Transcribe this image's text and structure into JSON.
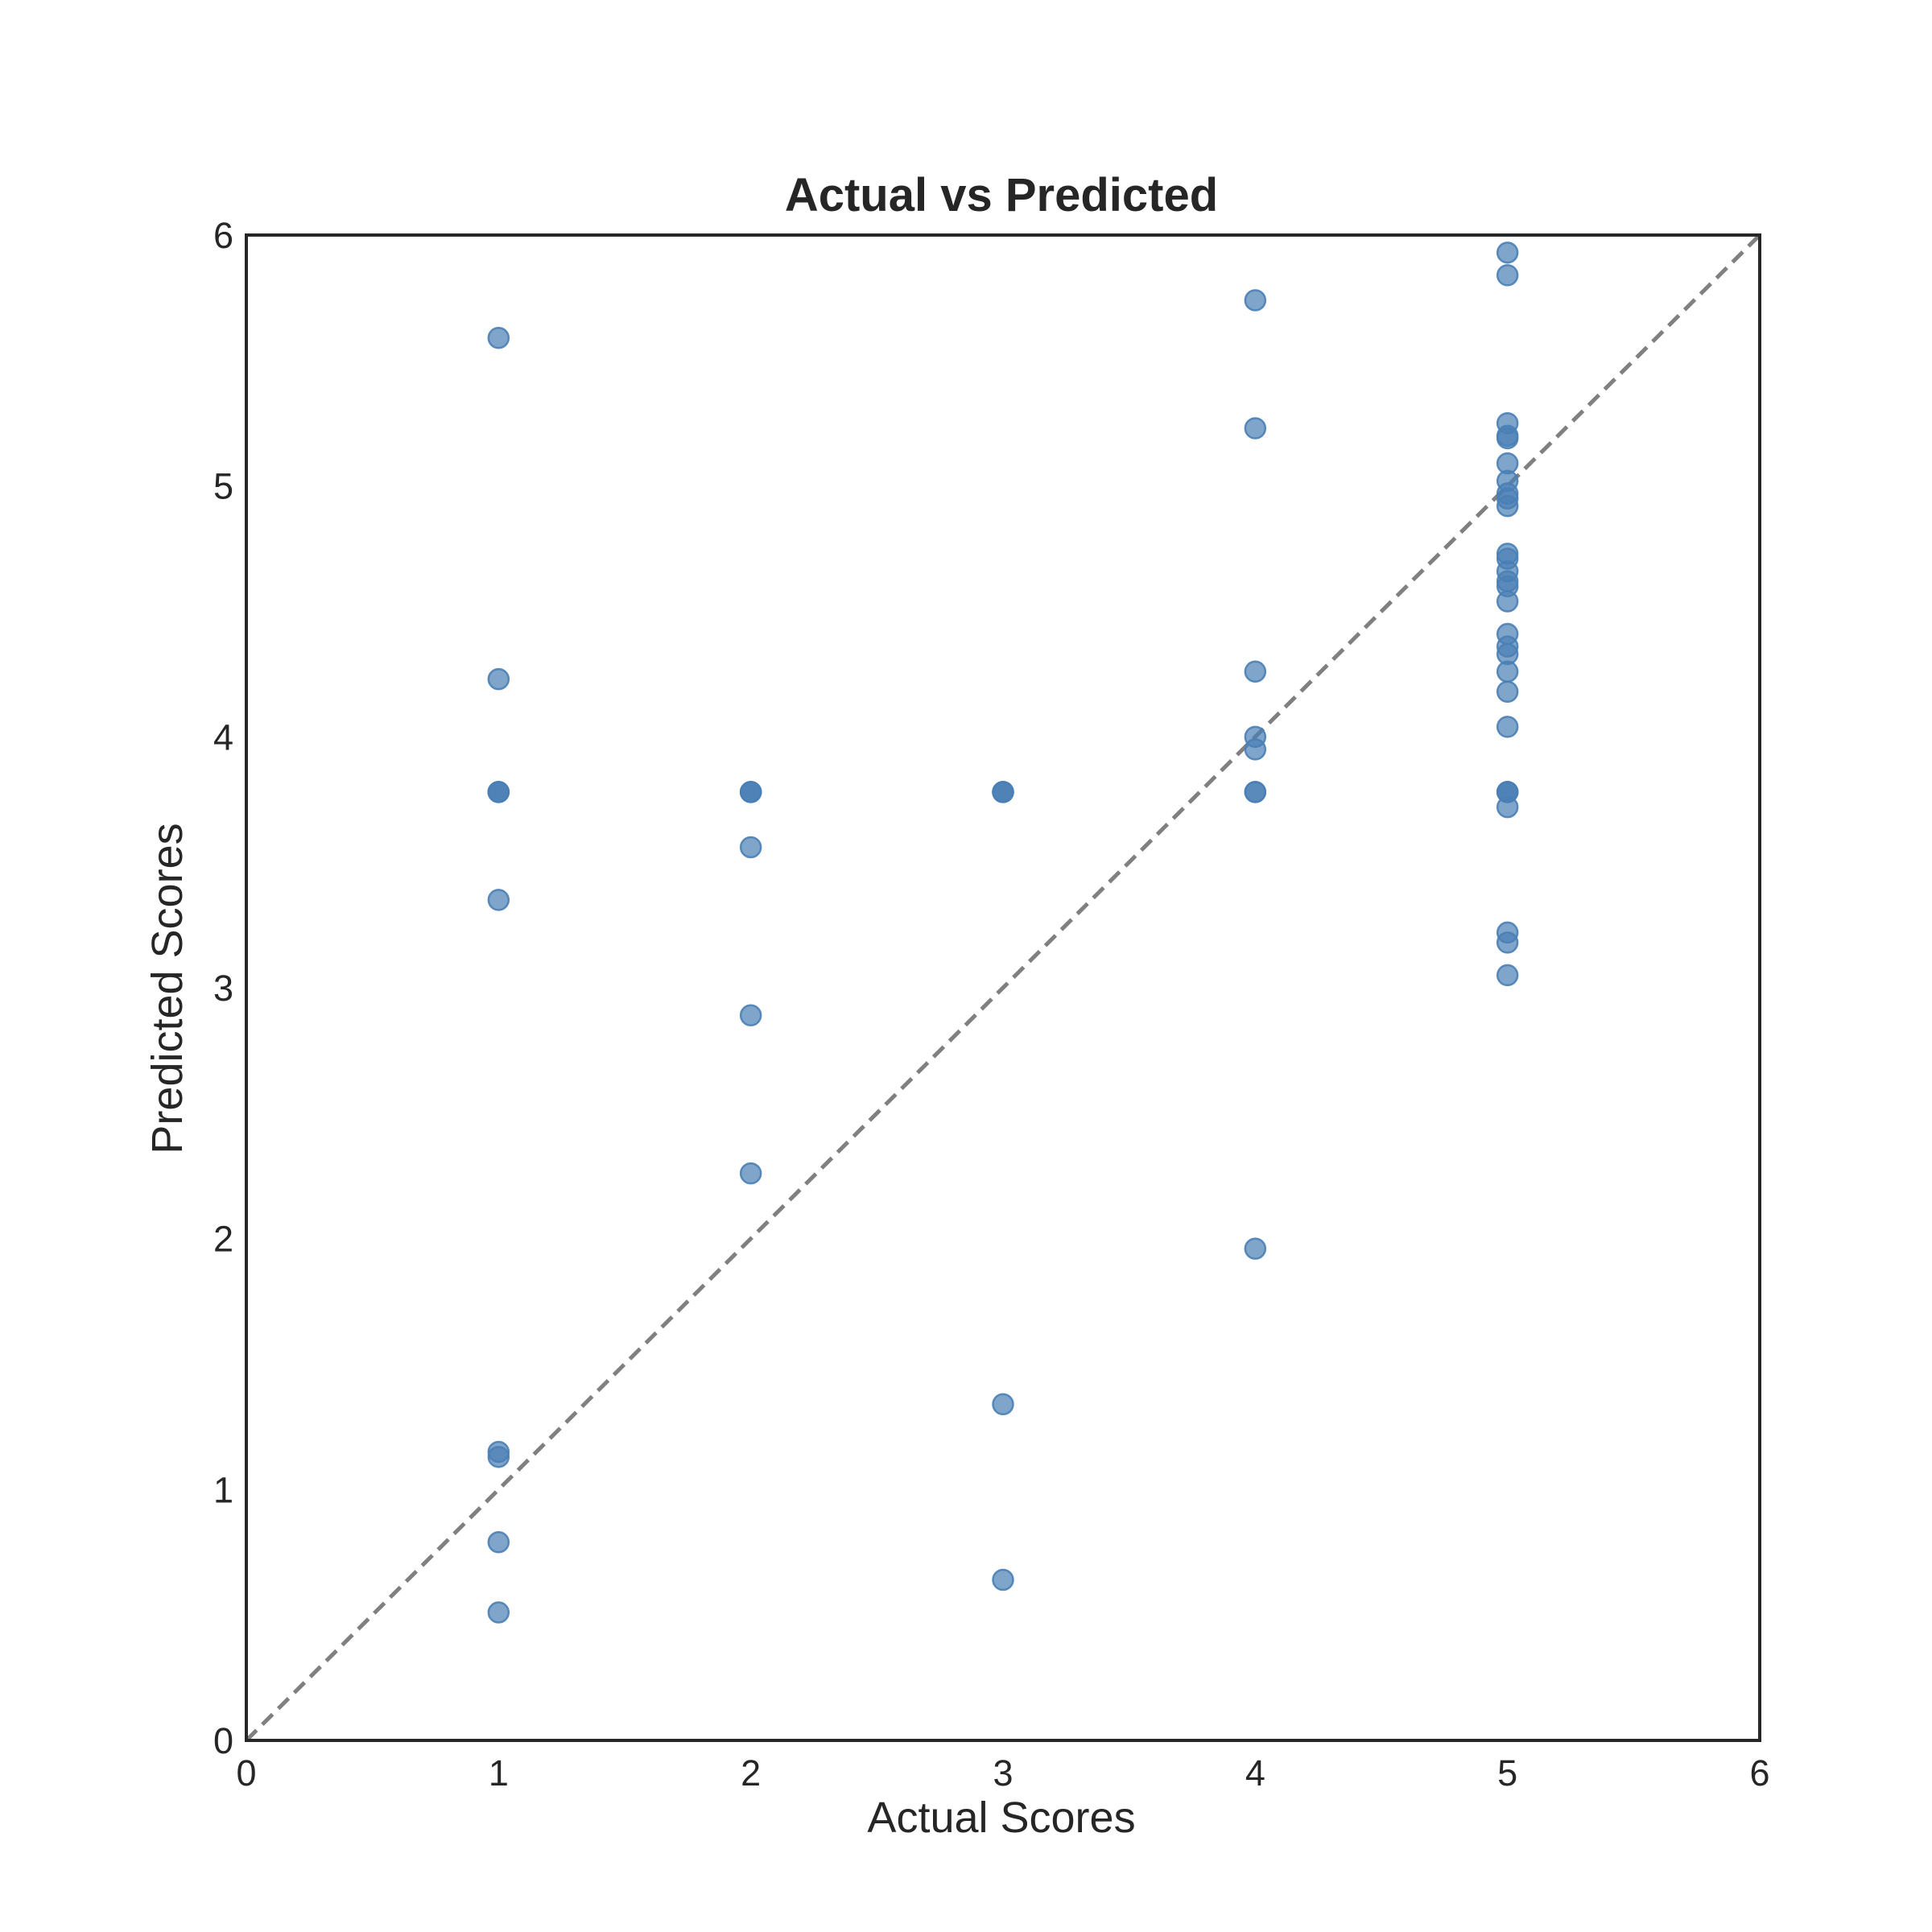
{
  "chart_data": {
    "type": "scatter",
    "title": "Actual vs Predicted",
    "xlabel": "Actual Scores",
    "ylabel": "Predicted Scores",
    "xlim": [
      0,
      6
    ],
    "ylim": [
      0,
      6
    ],
    "xticks": [
      "0",
      "1",
      "2",
      "3",
      "4",
      "5",
      "6"
    ],
    "yticks": [
      "0",
      "1",
      "2",
      "3",
      "4",
      "5",
      "6"
    ],
    "grid": false,
    "legend": "none",
    "marker_color": "#4a7fb5",
    "reference_line": {
      "style": "dashed",
      "color": "#808080",
      "from": [
        0,
        0
      ],
      "to": [
        6,
        6
      ]
    },
    "points": [
      [
        1,
        5.59
      ],
      [
        1,
        4.23
      ],
      [
        1,
        3.78
      ],
      [
        1,
        3.78
      ],
      [
        1,
        3.78
      ],
      [
        1,
        3.35
      ],
      [
        1,
        1.15
      ],
      [
        1,
        1.13
      ],
      [
        1,
        0.79
      ],
      [
        1,
        0.51
      ],
      [
        2,
        3.78
      ],
      [
        2,
        3.78
      ],
      [
        2,
        3.78
      ],
      [
        2,
        3.56
      ],
      [
        2,
        2.89
      ],
      [
        2,
        2.26
      ],
      [
        3,
        3.78
      ],
      [
        3,
        3.78
      ],
      [
        3,
        3.78
      ],
      [
        3,
        1.34
      ],
      [
        3,
        0.64
      ],
      [
        4,
        5.74
      ],
      [
        4,
        5.23
      ],
      [
        4,
        4.26
      ],
      [
        4,
        4.0
      ],
      [
        4,
        3.95
      ],
      [
        4,
        3.78
      ],
      [
        4,
        3.78
      ],
      [
        4,
        1.96
      ],
      [
        5,
        5.93
      ],
      [
        5,
        5.84
      ],
      [
        5,
        5.25
      ],
      [
        5,
        5.2
      ],
      [
        5,
        5.19
      ],
      [
        5,
        5.09
      ],
      [
        5,
        5.02
      ],
      [
        5,
        4.97
      ],
      [
        5,
        4.95
      ],
      [
        5,
        4.92
      ],
      [
        5,
        4.73
      ],
      [
        5,
        4.71
      ],
      [
        5,
        4.66
      ],
      [
        5,
        4.62
      ],
      [
        5,
        4.6
      ],
      [
        5,
        4.54
      ],
      [
        5,
        4.41
      ],
      [
        5,
        4.36
      ],
      [
        5,
        4.33
      ],
      [
        5,
        4.26
      ],
      [
        5,
        4.18
      ],
      [
        5,
        4.04
      ],
      [
        5,
        3.78
      ],
      [
        5,
        3.78
      ],
      [
        5,
        3.78
      ],
      [
        5,
        3.72
      ],
      [
        5,
        3.22
      ],
      [
        5,
        3.18
      ],
      [
        5,
        3.05
      ]
    ]
  }
}
